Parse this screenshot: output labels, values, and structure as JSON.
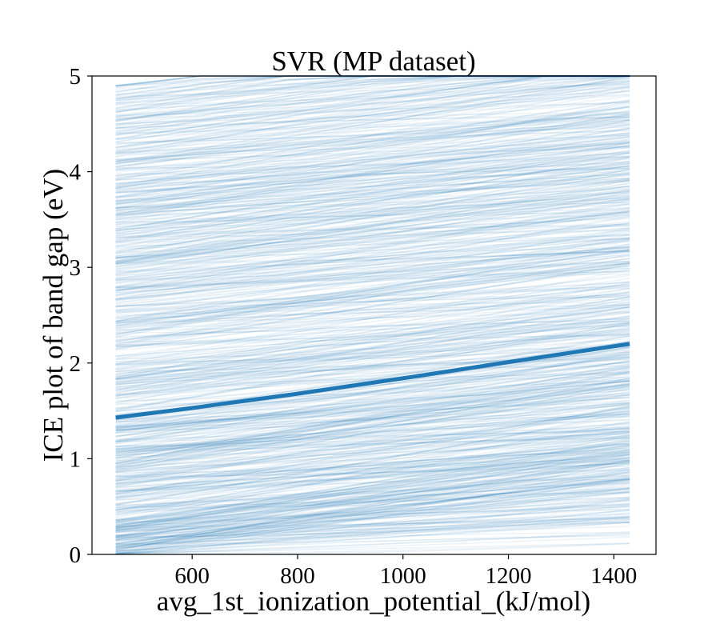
{
  "chart_data": {
    "type": "line",
    "title": "SVR (MP dataset)",
    "xlabel": "avg_1st_ionization_potential_(kJ/mol)",
    "ylabel": "ICE plot of band gap (eV)",
    "xlim": [
      410,
      1480
    ],
    "ylim": [
      0,
      5
    ],
    "x_range": [
      455,
      1430
    ],
    "x_ticks": [
      600,
      800,
      1000,
      1200,
      1400
    ],
    "y_ticks": [
      0,
      1,
      2,
      3,
      4,
      5
    ],
    "grid": false,
    "legend": "none",
    "ice_line_count": 900,
    "ice_line_color": "#1f77b4",
    "ice_line_opacity": 0.08,
    "series": [
      {
        "role": "average",
        "color": "#1f77b4",
        "x": [
          455,
          600,
          800,
          1000,
          1200,
          1430
        ],
        "y": [
          1.43,
          1.53,
          1.68,
          1.84,
          2.01,
          2.2
        ]
      }
    ]
  }
}
